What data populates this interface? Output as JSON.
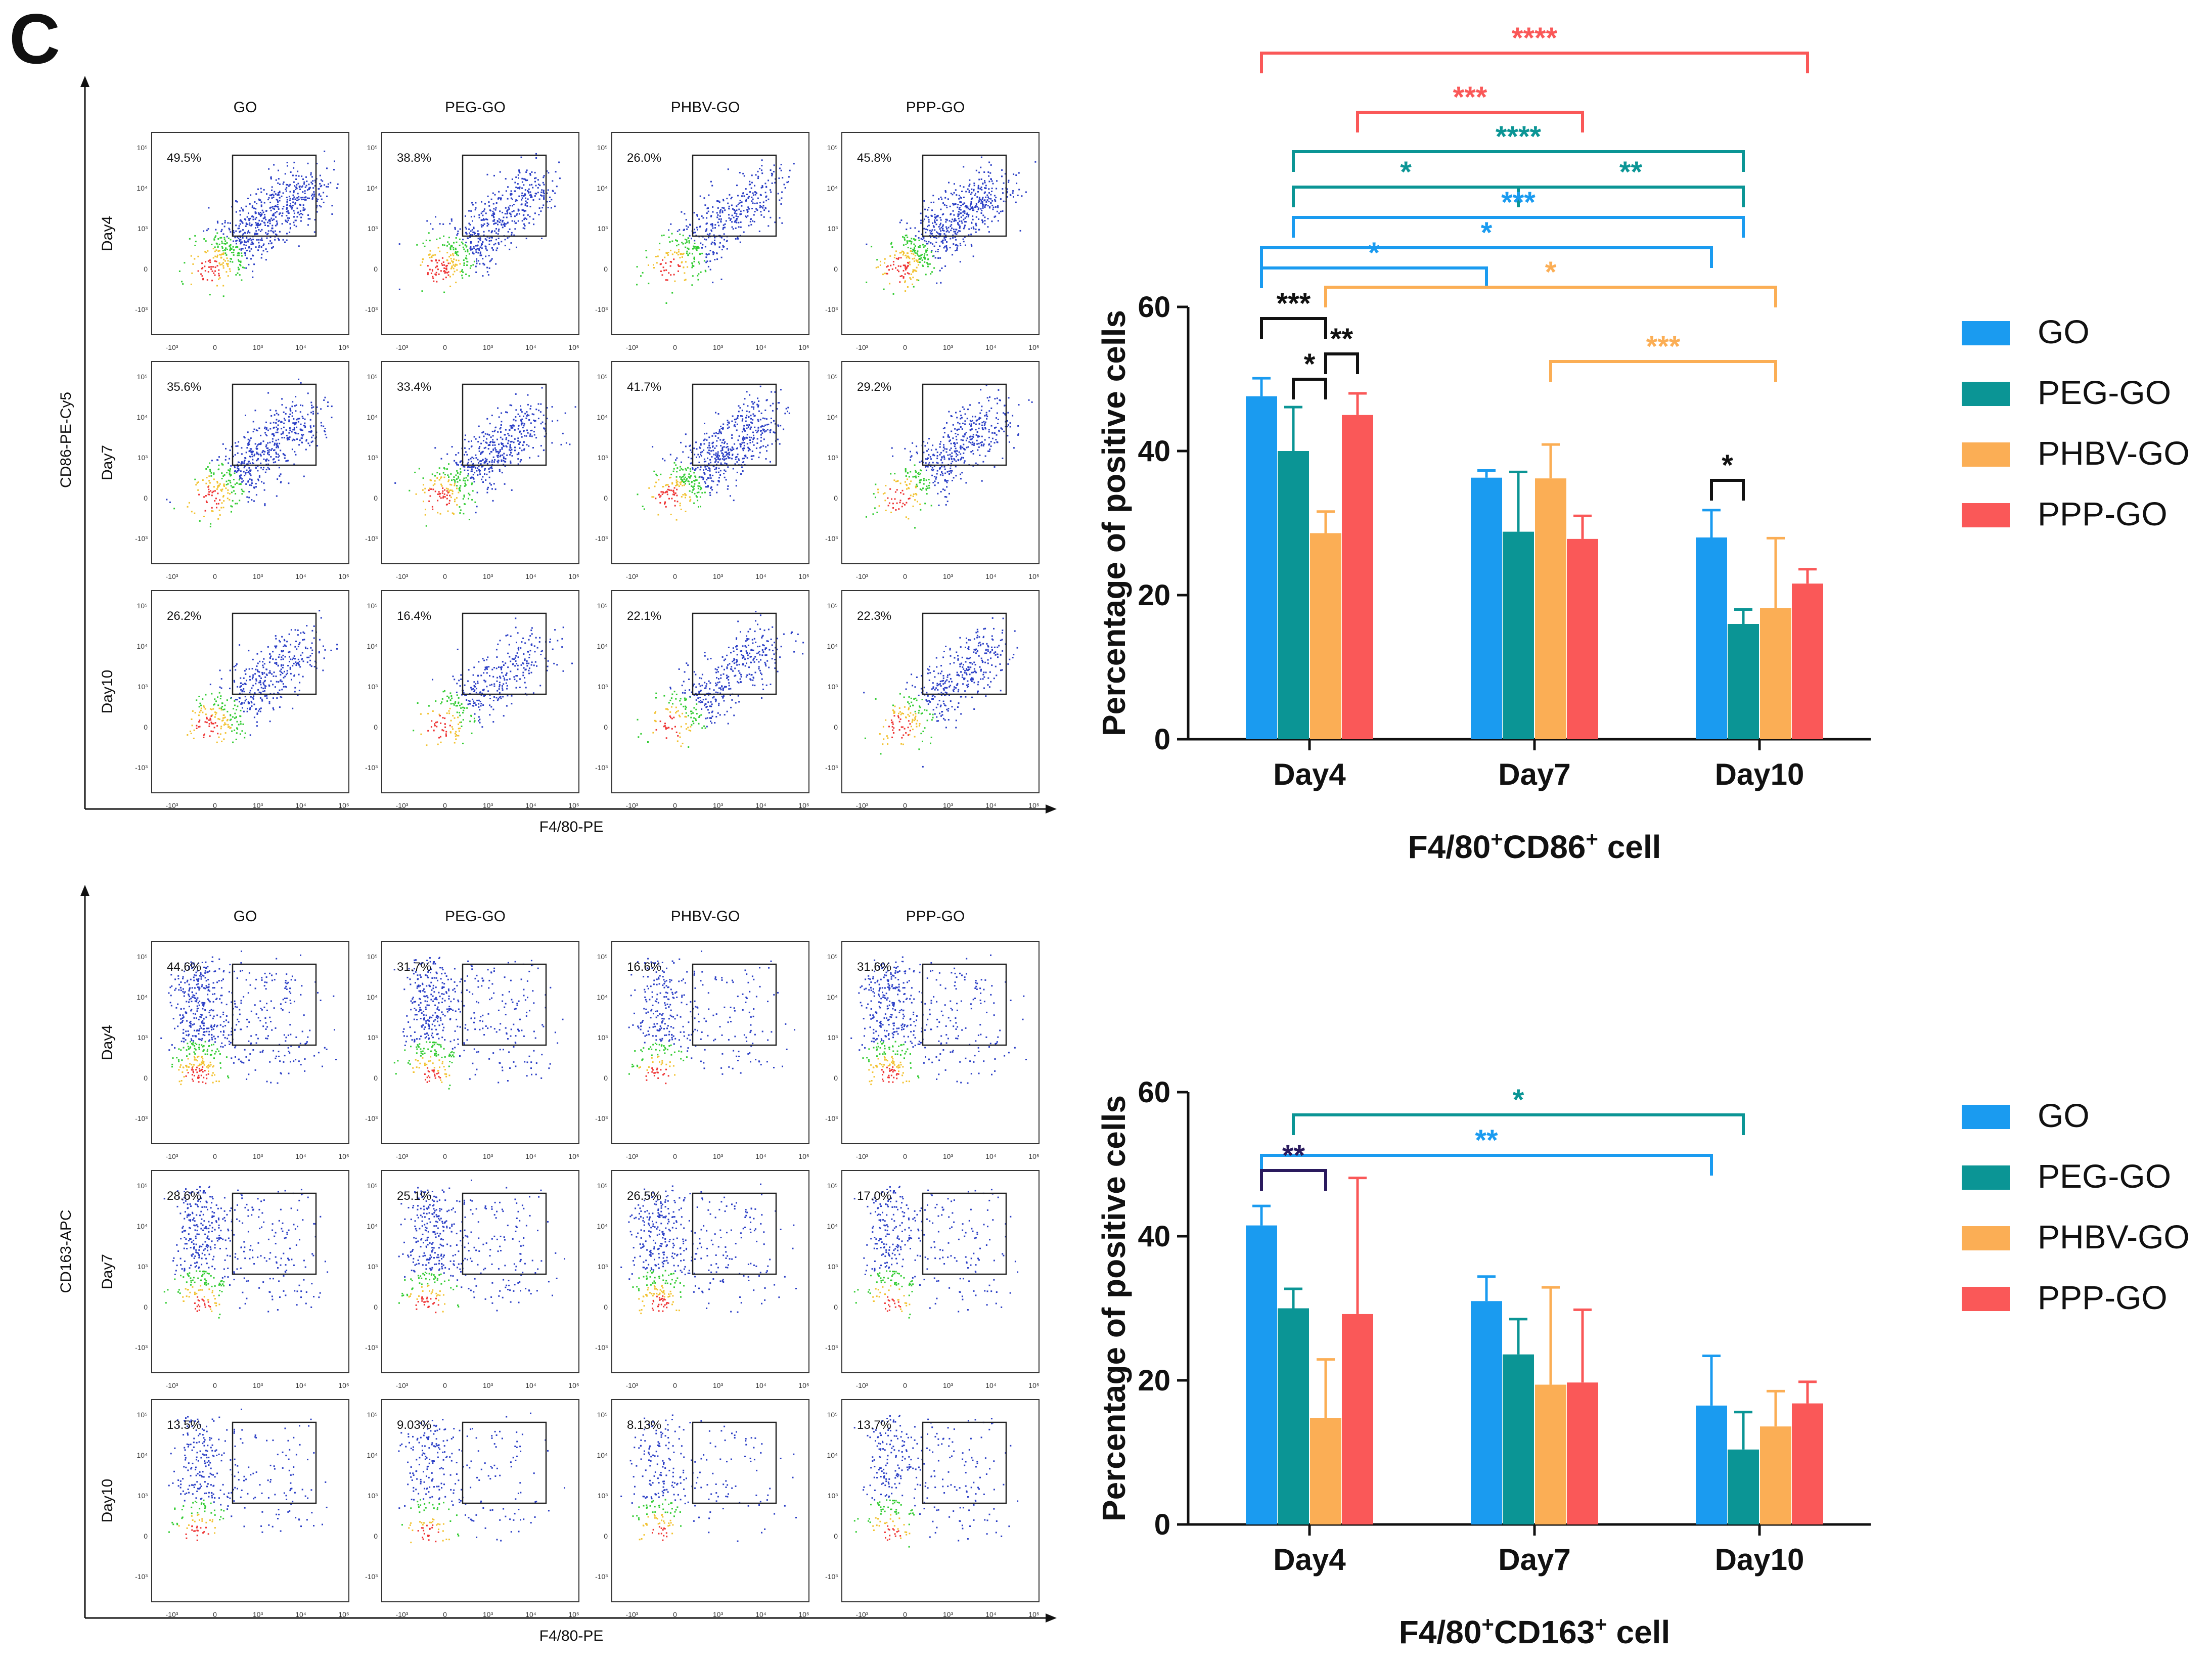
{
  "panel_letter": "C",
  "colors": {
    "GO": "#1a9bf0",
    "PEG-GO": "#0b9595",
    "PHBV-GO": "#fbae55",
    "PPP-GO": "#fa5858",
    "black": "#111111",
    "navy": "#2a1a5e"
  },
  "flow": [
    {
      "y_axis_label": "CD86-PE-Cy5",
      "x_axis_label": "F4/80-PE",
      "columns": [
        "GO",
        "PEG-GO",
        "PHBV-GO",
        "PPP-GO"
      ],
      "rows": [
        {
          "day": "Day4",
          "percents": [
            "49.5%",
            "38.8%",
            "26.0%",
            "45.8%"
          ]
        },
        {
          "day": "Day7",
          "percents": [
            "35.6%",
            "33.4%",
            "41.7%",
            "29.2%"
          ]
        },
        {
          "day": "Day10",
          "percents": [
            "26.2%",
            "16.4%",
            "22.1%",
            "22.3%"
          ]
        }
      ],
      "x_ticks": [
        "-10³",
        "0",
        "10³",
        "10⁴",
        "10⁵"
      ],
      "y_ticks": [
        "10⁵",
        "10⁴",
        "10³",
        "0",
        "-10³"
      ]
    },
    {
      "y_axis_label": "CD163-APC",
      "x_axis_label": "F4/80-PE",
      "columns": [
        "GO",
        "PEG-GO",
        "PHBV-GO",
        "PPP-GO"
      ],
      "rows": [
        {
          "day": "Day4",
          "percents": [
            "44.6%",
            "31.7%",
            "16.6%",
            "31.6%"
          ]
        },
        {
          "day": "Day7",
          "percents": [
            "28.6%",
            "25.1%",
            "26.5%",
            "17.0%"
          ]
        },
        {
          "day": "Day10",
          "percents": [
            "13.5%",
            "9.03%",
            "8.13%",
            "13.7%"
          ]
        }
      ],
      "x_ticks": [
        "-10³",
        "0",
        "10³",
        "10⁴",
        "10⁵"
      ],
      "y_ticks": [
        "10⁵",
        "10⁴",
        "10³",
        "0",
        "-10³"
      ]
    }
  ],
  "chart_data": [
    {
      "type": "bar",
      "title": "F4/80⁺CD86⁺ cell",
      "title_main": "F4/80",
      "title_sup1": "+",
      "title_mid": "CD86",
      "title_sup2": "+",
      "title_end": " cell",
      "ylabel": "Percentage of positive cells",
      "xlabel": "",
      "ylim": [
        0,
        60
      ],
      "yticks": [
        "0",
        "20",
        "40",
        "60"
      ],
      "categories": [
        "Day4",
        "Day7",
        "Day10"
      ],
      "series": [
        {
          "name": "GO",
          "values": [
            47.6,
            36.3,
            28.0
          ],
          "errors": [
            2.5,
            1.0,
            3.8
          ]
        },
        {
          "name": "PEG-GO",
          "values": [
            40.0,
            28.8,
            16.0
          ],
          "errors": [
            6.1,
            8.3,
            2.0
          ]
        },
        {
          "name": "PHBV-GO",
          "values": [
            28.6,
            36.2,
            18.2
          ],
          "errors": [
            3.0,
            4.7,
            9.7
          ]
        },
        {
          "name": "PPP-GO",
          "values": [
            45.0,
            27.8,
            21.6
          ],
          "errors": [
            3.0,
            3.2,
            2.0
          ]
        }
      ],
      "significance": [
        {
          "from": [
            0,
            0
          ],
          "to": [
            2,
            3
          ],
          "label": "****",
          "color": "PPP-GO"
        },
        {
          "from": [
            0,
            3
          ],
          "to": [
            1,
            3
          ],
          "label": "***",
          "color": "PPP-GO"
        },
        {
          "from": [
            0,
            1
          ],
          "to": [
            2,
            1
          ],
          "label": "****",
          "color": "PEG-GO"
        },
        {
          "from": [
            0,
            1
          ],
          "to": [
            1,
            1
          ],
          "label": "*",
          "color": "PEG-GO"
        },
        {
          "from": [
            1,
            1
          ],
          "to": [
            2,
            1
          ],
          "label": "**",
          "color": "PEG-GO"
        },
        {
          "from": [
            0,
            1
          ],
          "to": [
            2,
            1
          ],
          "label": "***",
          "color": "GO"
        },
        {
          "from": [
            0,
            0
          ],
          "to": [
            2,
            0
          ],
          "label": "*",
          "color": "GO"
        },
        {
          "from": [
            0,
            0
          ],
          "to": [
            1,
            0
          ],
          "label": "*",
          "color": "GO"
        },
        {
          "from": [
            0,
            2
          ],
          "to": [
            2,
            2
          ],
          "label": "*",
          "color": "PHBV-GO"
        },
        {
          "from": [
            1,
            2
          ],
          "to": [
            2,
            2
          ],
          "label": "***",
          "color": "PHBV-GO"
        },
        {
          "from": [
            0,
            0
          ],
          "to": [
            0,
            2
          ],
          "label": "***",
          "color": "black"
        },
        {
          "from": [
            0,
            1
          ],
          "to": [
            0,
            2
          ],
          "label": "*",
          "color": "black"
        },
        {
          "from": [
            0,
            2
          ],
          "to": [
            0,
            3
          ],
          "label": "**",
          "color": "black"
        },
        {
          "from": [
            2,
            0
          ],
          "to": [
            2,
            1
          ],
          "label": "*",
          "color": "black"
        }
      ],
      "legend": [
        "GO",
        "PEG-GO",
        "PHBV-GO",
        "PPP-GO"
      ],
      "legend_position": "right"
    },
    {
      "type": "bar",
      "title": "F4/80⁺CD163⁺ cell",
      "title_main": "F4/80",
      "title_sup1": "+",
      "title_mid": "CD163",
      "title_sup2": "+",
      "title_end": " cell",
      "ylabel": "Percentage of positive cells",
      "xlabel": "",
      "ylim": [
        0,
        60
      ],
      "yticks": [
        "0",
        "20",
        "40",
        "60"
      ],
      "categories": [
        "Day4",
        "Day7",
        "Day10"
      ],
      "series": [
        {
          "name": "GO",
          "values": [
            41.5,
            31.0,
            16.5
          ],
          "errors": [
            2.7,
            3.4,
            6.9
          ]
        },
        {
          "name": "PEG-GO",
          "values": [
            30.0,
            23.6,
            10.4
          ],
          "errors": [
            2.7,
            4.9,
            5.2
          ]
        },
        {
          "name": "PHBV-GO",
          "values": [
            14.8,
            19.4,
            13.6
          ],
          "errors": [
            8.1,
            13.5,
            4.9
          ]
        },
        {
          "name": "PPP-GO",
          "values": [
            29.2,
            19.7,
            16.8
          ],
          "errors": [
            18.9,
            10.1,
            3.0
          ]
        }
      ],
      "significance": [
        {
          "from": [
            0,
            1
          ],
          "to": [
            2,
            1
          ],
          "label": "*",
          "color": "PEG-GO"
        },
        {
          "from": [
            0,
            0
          ],
          "to": [
            2,
            0
          ],
          "label": "**",
          "color": "GO"
        },
        {
          "from": [
            0,
            0
          ],
          "to": [
            0,
            2
          ],
          "label": "**",
          "color": "navy"
        }
      ],
      "legend": [
        "GO",
        "PEG-GO",
        "PHBV-GO",
        "PPP-GO"
      ],
      "legend_position": "right"
    }
  ]
}
